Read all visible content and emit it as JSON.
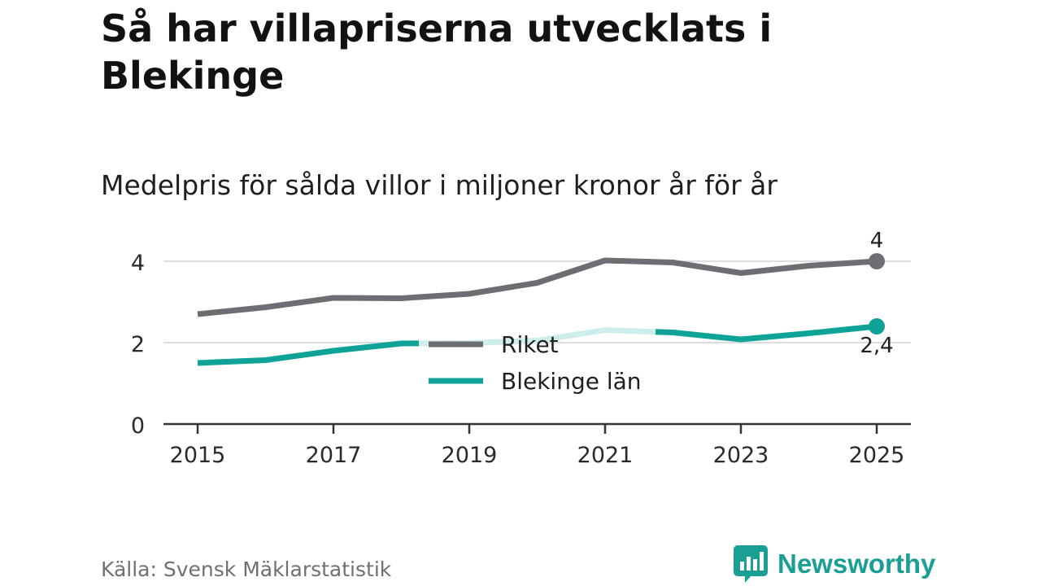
{
  "title": "Så har villapriserna utvecklats i Blekinge",
  "subtitle": "Medelpris för sålda villor i miljoner kronor år för år",
  "source": "Källa: Svensk Mäklarstatistik",
  "logo_text": "Newsworthy",
  "colors": {
    "riket": "#6e6d73",
    "blekinge": "#0fa398",
    "blekinge_faded": "#cdeeea",
    "grid": "#dddddd",
    "axis": "#333333",
    "logo": "#1a9f95"
  },
  "chart_data": {
    "type": "line",
    "x": [
      2015,
      2016,
      2017,
      2018,
      2019,
      2020,
      2021,
      2022,
      2023,
      2024,
      2025
    ],
    "x_ticks": [
      "2015",
      "2017",
      "2019",
      "2021",
      "2023",
      "2025"
    ],
    "y_ticks": [
      "0",
      "2",
      "4"
    ],
    "ylim": [
      0,
      4
    ],
    "series": [
      {
        "name": "Riket",
        "values": [
          2.7,
          2.87,
          3.1,
          3.09,
          3.2,
          3.47,
          4.02,
          3.97,
          3.71,
          3.89,
          4.0
        ],
        "end_label": "4"
      },
      {
        "name": "Blekinge län",
        "values": [
          1.5,
          1.57,
          1.8,
          1.98,
          1.99,
          2.05,
          2.31,
          2.25,
          2.08,
          2.23,
          2.4
        ],
        "end_label": "2,4"
      }
    ],
    "legend": [
      "Riket",
      "Blekinge län"
    ],
    "legend_position": "center"
  }
}
